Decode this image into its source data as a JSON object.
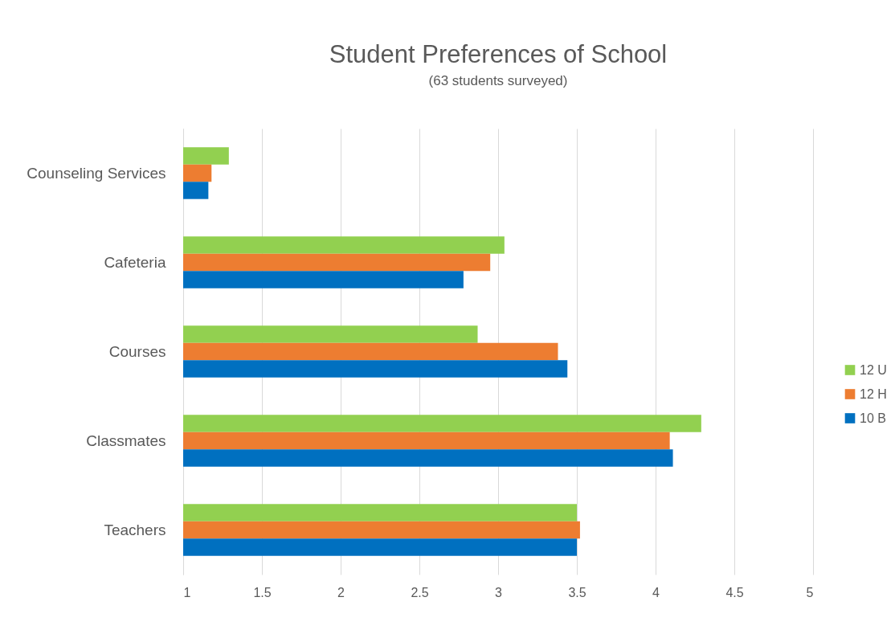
{
  "chart_data": {
    "type": "bar",
    "orientation": "horizontal",
    "title": "Student Preferences of School",
    "subtitle": "(63 students surveyed)",
    "categories": [
      "Counseling Services",
      "Cafeteria",
      "Courses",
      "Classmates",
      "Teachers"
    ],
    "series": [
      {
        "name": "12 U",
        "color": "#92d050",
        "values": [
          1.29,
          3.04,
          2.87,
          4.29,
          3.5
        ]
      },
      {
        "name": "12 H",
        "color": "#ed7d31",
        "values": [
          1.18,
          2.95,
          3.38,
          4.09,
          3.52
        ]
      },
      {
        "name": "10 B",
        "color": "#0070c0",
        "values": [
          1.16,
          2.78,
          3.44,
          4.11,
          3.5
        ]
      }
    ],
    "xlim": [
      1,
      5
    ],
    "xticks": [
      1,
      1.5,
      2,
      2.5,
      3,
      3.5,
      4,
      4.5,
      5
    ],
    "grid": "x",
    "legend": "right"
  }
}
